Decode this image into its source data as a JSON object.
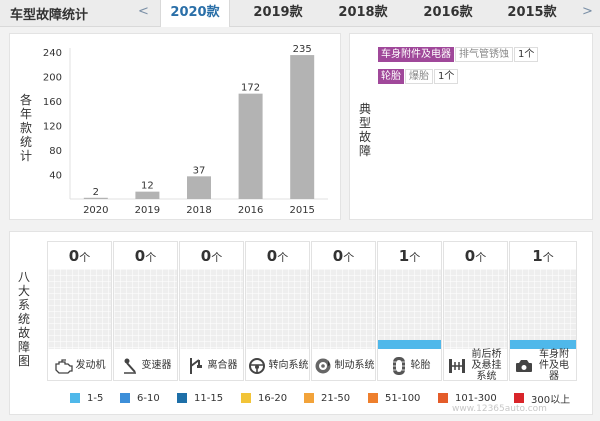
{
  "header": {
    "title": "车型故障统计",
    "prev_arrow": "<",
    "next_arrow": ">",
    "tabs": [
      {
        "label": "2020款",
        "active": true
      },
      {
        "label": "2019款",
        "active": false
      },
      {
        "label": "2018款",
        "active": false
      },
      {
        "label": "2016款",
        "active": false
      },
      {
        "label": "2015款",
        "active": false
      }
    ]
  },
  "yearly_panel": {
    "ylabel": "各年款统计"
  },
  "chart_data": {
    "type": "bar",
    "categories": [
      "2020",
      "2019",
      "2018",
      "2016",
      "2015"
    ],
    "values": [
      2,
      12,
      37,
      172,
      235
    ],
    "title": "",
    "xlabel": "",
    "ylabel": "各年款统计",
    "yticks": [
      40,
      80,
      120,
      160,
      200,
      240
    ],
    "ylim": [
      0,
      240
    ],
    "grid": false,
    "bar_color": "#b3b3b3"
  },
  "typical_panel": {
    "label": "典型故障",
    "tags": [
      {
        "category": "车身附件及电器",
        "fault": "排气管锈蚀",
        "count": "1个"
      },
      {
        "category": "轮胎",
        "fault": "爆胎",
        "count": "1个"
      }
    ],
    "category_color": "#a0489a"
  },
  "systems_panel": {
    "label": "八大系统故障图",
    "unit": "个",
    "fill_color": "#4fb8ea",
    "systems": [
      {
        "name": "发动机",
        "count": "0",
        "icon": "engine-icon"
      },
      {
        "name": "变速器",
        "count": "0",
        "icon": "gear-shift-icon"
      },
      {
        "name": "离合器",
        "count": "0",
        "icon": "clutch-pedal-icon"
      },
      {
        "name": "转向系统",
        "count": "0",
        "icon": "steering-wheel-icon"
      },
      {
        "name": "制动系统",
        "count": "0",
        "icon": "brake-disc-icon"
      },
      {
        "name": "轮胎",
        "count": "1",
        "icon": "tire-icon"
      },
      {
        "name": "前后桥及悬挂系统",
        "count": "0",
        "icon": "axle-suspension-icon"
      },
      {
        "name": "车身附件及电器",
        "count": "1",
        "icon": "car-body-icon"
      }
    ]
  },
  "legend": [
    {
      "label": "1-5",
      "color": "#4fb8ea"
    },
    {
      "label": "6-10",
      "color": "#3d8fd9"
    },
    {
      "label": "11-15",
      "color": "#1e6fa8"
    },
    {
      "label": "16-20",
      "color": "#f2c438"
    },
    {
      "label": "21-50",
      "color": "#f2a33a"
    },
    {
      "label": "51-100",
      "color": "#ee7f2d"
    },
    {
      "label": "101-300",
      "color": "#e45c2a"
    },
    {
      "label": "300以上",
      "color": "#d9252a"
    }
  ],
  "watermark": "www.12365auto.com"
}
